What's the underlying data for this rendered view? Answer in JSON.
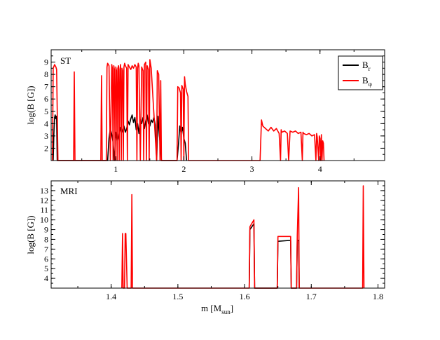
{
  "chart_data": [
    {
      "type": "line",
      "panel_label": "ST",
      "ylabel": "log(B [G])",
      "xlim": [
        0.05,
        4.95
      ],
      "ylim": [
        1,
        10
      ],
      "xticks": [
        1,
        2,
        3,
        4
      ],
      "yticks": [
        2,
        3,
        4,
        5,
        6,
        7,
        8,
        9
      ],
      "grid": false,
      "legend": "top-right",
      "series": [
        {
          "name": "B_r",
          "legend_main": "B",
          "legend_sub": "r",
          "color": "#000000",
          "x": [
            0.08,
            0.09,
            0.1,
            0.11,
            0.12,
            0.13,
            0.14,
            0.88,
            0.9,
            0.92,
            0.94,
            0.96,
            0.98,
            1.0,
            1.02,
            1.04,
            1.06,
            1.08,
            1.1,
            1.12,
            1.14,
            1.16,
            1.18,
            1.2,
            1.22,
            1.24,
            1.26,
            1.28,
            1.3,
            1.32,
            1.34,
            1.36,
            1.38,
            1.4,
            1.42,
            1.44,
            1.46,
            1.48,
            1.5,
            1.52,
            1.54,
            1.56,
            1.58,
            1.6,
            1.62,
            1.64,
            1.66,
            1.67,
            1.9,
            1.92,
            1.94,
            1.96,
            1.98,
            2.0,
            2.02,
            2.04
          ],
          "y": [
            1,
            3.2,
            4.5,
            4.7,
            4.4,
            4.6,
            1,
            1,
            2.8,
            3.6,
            3.1,
            2.5,
            1,
            3.3,
            2.6,
            3.0,
            3.7,
            3.2,
            3.5,
            3.8,
            3.3,
            3.6,
            4.2,
            3.9,
            4.4,
            4.7,
            4.1,
            4.5,
            3.5,
            4.0,
            3.2,
            4.3,
            4.0,
            4.5,
            3.6,
            4.2,
            4.7,
            4.0,
            3.8,
            4.3,
            4.1,
            4.5,
            3.9,
            1,
            4.6,
            3.0,
            2.0,
            1,
            1,
            2.3,
            3.8,
            3.2,
            3.7,
            2.8,
            2.4,
            1
          ]
        },
        {
          "name": "B_φ",
          "legend_main": "B",
          "legend_sub": "φ",
          "color": "#ff0000",
          "x": [
            0.07,
            0.08,
            0.1,
            0.12,
            0.13,
            0.14,
            0.15,
            0.38,
            0.39,
            0.4,
            0.78,
            0.79,
            0.8,
            0.86,
            0.87,
            0.88,
            0.9,
            0.92,
            0.94,
            0.95,
            0.96,
            0.97,
            0.98,
            0.99,
            1.0,
            1.01,
            1.02,
            1.03,
            1.04,
            1.05,
            1.06,
            1.07,
            1.08,
            1.09,
            1.1,
            1.11,
            1.12,
            1.13,
            1.14,
            1.16,
            1.17,
            1.18,
            1.2,
            1.22,
            1.24,
            1.26,
            1.28,
            1.3,
            1.31,
            1.32,
            1.33,
            1.34,
            1.36,
            1.38,
            1.4,
            1.41,
            1.42,
            1.44,
            1.45,
            1.46,
            1.48,
            1.49,
            1.5,
            1.52,
            1.6,
            1.61,
            1.63,
            1.65,
            1.66,
            1.67,
            1.9,
            1.91,
            1.93,
            1.95,
            1.96,
            1.97,
            1.99,
            2.0,
            2.01,
            2.02,
            2.04,
            2.06,
            2.07,
            3.12,
            3.14,
            3.16,
            3.2,
            3.24,
            3.28,
            3.32,
            3.36,
            3.4,
            3.42,
            3.43,
            3.44,
            3.48,
            3.52,
            3.54,
            3.56,
            3.6,
            3.64,
            3.68,
            3.72,
            3.74,
            3.75,
            3.76,
            3.8,
            3.84,
            3.88,
            3.92,
            3.94,
            3.95,
            3.96,
            3.98,
            3.99,
            4.0,
            4.01,
            4.02,
            4.03,
            4.04,
            4.05,
            4.06
          ],
          "y": [
            1,
            8.5,
            8.8,
            8.6,
            8.4,
            5.0,
            1,
            1,
            8.2,
            1,
            1,
            7.9,
            1,
            1,
            8.6,
            8.9,
            8.7,
            1,
            8.8,
            8.5,
            1,
            8.7,
            8.4,
            1,
            8.6,
            8.3,
            1,
            8.5,
            8.7,
            1,
            8.4,
            8.8,
            1,
            8.5,
            8.3,
            1,
            8.6,
            8.9,
            8.7,
            8.5,
            1,
            8.8,
            8.6,
            8.4,
            8.7,
            8.5,
            8.8,
            8.6,
            1,
            8.5,
            8.9,
            8.7,
            1,
            8.6,
            8.3,
            1,
            8.8,
            9.0,
            1,
            8.7,
            8.4,
            1,
            9.2,
            8.5,
            1,
            8.3,
            8.0,
            1,
            7.5,
            1,
            1,
            7.0,
            6.9,
            6.5,
            1,
            7.1,
            6.8,
            1,
            7.8,
            7.2,
            6.6,
            6.2,
            1,
            1,
            4.3,
            3.8,
            3.6,
            3.4,
            3.7,
            3.4,
            3.6,
            3.2,
            1,
            3.5,
            3.3,
            3.4,
            3.2,
            1,
            3.4,
            3.3,
            3.4,
            3.2,
            3.3,
            1,
            3.3,
            3.2,
            3.1,
            3.2,
            3.0,
            3.1,
            1,
            3.2,
            2.9,
            1,
            3.0,
            2.8,
            1,
            3.1,
            1,
            2.6,
            2.4,
            1
          ]
        }
      ]
    },
    {
      "type": "line",
      "panel_label": "MRI",
      "xlabel_main": "m [M",
      "xlabel_sub": "sun",
      "xlabel_end": "]",
      "ylabel": "log(B [G])",
      "xlim": [
        1.31,
        1.81
      ],
      "ylim": [
        3,
        14
      ],
      "xticks": [
        1.4,
        1.5,
        1.6,
        1.7,
        1.8
      ],
      "yticks": [
        4,
        5,
        6,
        7,
        8,
        9,
        10,
        11,
        12,
        13
      ],
      "grid": false,
      "series": [
        {
          "name": "B_r",
          "color": "#000000",
          "x": [
            1.607,
            1.608,
            1.614,
            1.615,
            1.649,
            1.65,
            1.669,
            1.67,
            1.678,
            1.679,
            1.681,
            1.682
          ],
          "y": [
            3,
            9.0,
            9.6,
            3,
            3,
            7.8,
            7.9,
            3,
            3,
            7.9,
            7.9,
            3
          ]
        },
        {
          "name": "B_φ",
          "color": "#ff0000",
          "x": [
            1.416,
            1.417,
            1.418,
            1.42,
            1.421,
            1.422,
            1.424,
            1.43,
            1.431,
            1.432,
            1.607,
            1.608,
            1.614,
            1.615,
            1.649,
            1.65,
            1.669,
            1.67,
            1.678,
            1.679,
            1.681,
            1.682,
            1.683,
            1.777,
            1.778,
            1.779
          ],
          "y": [
            3,
            8.6,
            3,
            3,
            8.6,
            8.6,
            3,
            3,
            12.6,
            3,
            3,
            9.3,
            10.0,
            3,
            3,
            8.3,
            8.3,
            3,
            3,
            8.4,
            13.3,
            3,
            3,
            3,
            13.5,
            3
          ]
        }
      ]
    }
  ]
}
